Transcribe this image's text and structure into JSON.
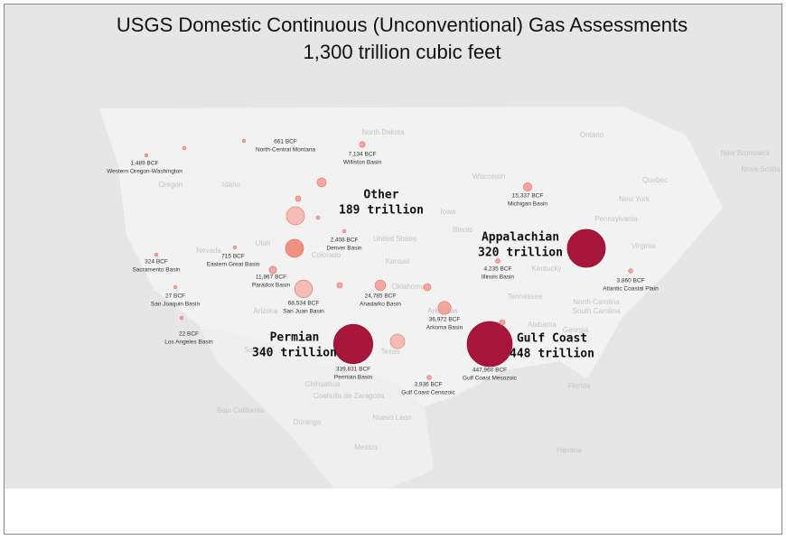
{
  "title": "USGS Domestic Continuous (Unconventional) Gas Assessments",
  "subtitle": "1,300 trillion cubic feet",
  "regions": [
    {
      "name": "Other",
      "value_label": "189 trillion"
    },
    {
      "name": "Appalachian",
      "value_label": "320 trillion"
    },
    {
      "name": "Permian",
      "value_label": "340 trillion"
    },
    {
      "name": "Gulf Coast",
      "value_label": "448 trillion"
    }
  ],
  "basins": [
    {
      "name": "Western Oregon-Washington",
      "value": 1489,
      "value_label": "1,489 BCF",
      "color": "#f29a90"
    },
    {
      "name": "North-Central Montana",
      "value": 661,
      "value_label": "661 BCF",
      "color": "#f29a90"
    },
    {
      "name": "Williston Basin",
      "value": 7134,
      "value_label": "7,134 BCF",
      "color": "#f29a90"
    },
    {
      "name": "Michigan Basin",
      "value": 15337,
      "value_label": "15,337 BCF",
      "color": "#f29a90"
    },
    {
      "name": "Denver Basin",
      "value": 2408,
      "value_label": "2,408 BCF",
      "color": "#f29a90"
    },
    {
      "name": "Eastern Great Basin",
      "value": 715,
      "value_label": "715 BCF",
      "color": "#f29a90"
    },
    {
      "name": "Sacramento Basin",
      "value": 324,
      "value_label": "324 BCF",
      "color": "#f29a90"
    },
    {
      "name": "Paradox Basin",
      "value": 11867,
      "value_label": "11,867 BCF",
      "color": "#f29a90"
    },
    {
      "name": "San Juan Basin",
      "value": 68534,
      "value_label": "68,534 BCF",
      "color": "#f5b3aa"
    },
    {
      "name": "Anadarko Basin",
      "value": 24785,
      "value_label": "24,785 BCF",
      "color": "#f29a90"
    },
    {
      "name": "Illinois Basin",
      "value": 4235,
      "value_label": "4,235 BCF",
      "color": "#f29a90"
    },
    {
      "name": "Atlantic Coastal Plain",
      "value": 3860,
      "value_label": "3,860 BCF",
      "color": "#f29a90"
    },
    {
      "name": "San Joaquin Basin",
      "value": 27,
      "value_label": "27 BCF",
      "color": "#f29a90"
    },
    {
      "name": "Los Angeles Basin",
      "value": 22,
      "value_label": "22 BCF",
      "color": "#f29a90"
    },
    {
      "name": "Arkoma Basin",
      "value": 36972,
      "value_label": "36,972 BCF",
      "color": "#f29a90"
    },
    {
      "name": "Permian Basin",
      "value": 339831,
      "value_label": "339,831 BCF",
      "color": "#a8153a"
    },
    {
      "name": "Gulf Coast Mesozoic",
      "value": 447960,
      "value_label": "447,960 BCF",
      "color": "#a8153a"
    },
    {
      "name": "Gulf Coast Cenozoic",
      "value": 3936,
      "value_label": "3,936 BCF",
      "color": "#f29a90"
    },
    {
      "name": null,
      "value": 320000,
      "color": "#a8153a"
    },
    {
      "name": null,
      "value": 72000,
      "color": "#f5b3aa"
    },
    {
      "name": null,
      "value": 72000,
      "color": "#ee7f70"
    },
    {
      "name": null,
      "value": 18000,
      "color": "#f29a90"
    },
    {
      "name": null,
      "value": 6500,
      "color": "#f29a90"
    },
    {
      "name": null,
      "value": 2900,
      "color": "#f29a90"
    },
    {
      "name": null,
      "value": 6500,
      "color": "#f29a90"
    },
    {
      "name": null,
      "value": 46000,
      "color": "#f5b3aa"
    },
    {
      "name": null,
      "value": 11500,
      "color": "#f29a90"
    },
    {
      "name": null,
      "value": 6500,
      "color": "#f29a90"
    },
    {
      "name": null,
      "value": 2900,
      "color": "#f29a90"
    }
  ],
  "map_labels": [
    "United States",
    "Mexico",
    "Oregon",
    "Idaho",
    "Nevada",
    "Utah",
    "Colorado",
    "Arizona",
    "Kansas",
    "Iowa",
    "Wisconsin",
    "North Dakota",
    "New York",
    "Pennsylvania",
    "Kentucky",
    "Tennessee",
    "Texas",
    "Georgia",
    "Florida",
    "Chihuahua",
    "Sonora",
    "Baja California",
    "Coahuila de Zaragoza",
    "Nuevo Leon",
    "Durango",
    "Quebec",
    "Ontario",
    "New Brunswick",
    "Nova Scotia",
    "Arkansas",
    "Oklahoma",
    "Alabama",
    "Illinois",
    "South Carolina",
    "North Carolina",
    "Virginia",
    "Havana"
  ]
}
